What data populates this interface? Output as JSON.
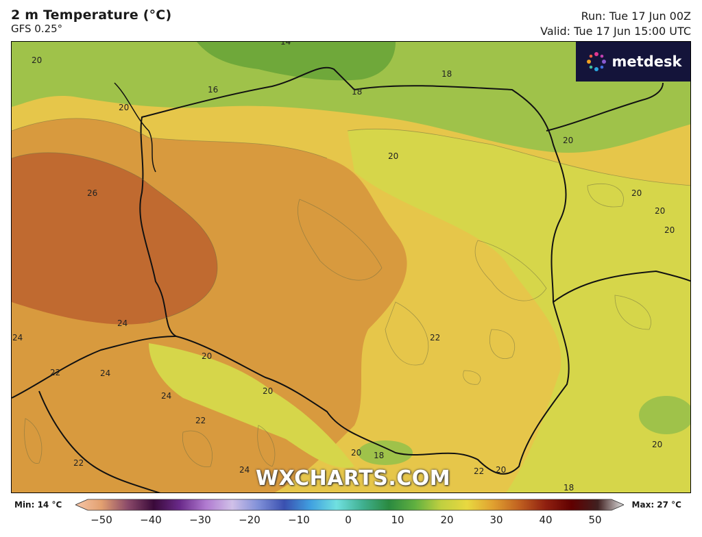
{
  "header": {
    "title": "2 m Temperature (°C)",
    "model": "GFS 0.25°",
    "run": "Run: Tue 17 Jun 00Z",
    "valid": "Valid: Tue 17 Jun 15:00 UTC"
  },
  "logo": {
    "text": "metdesk"
  },
  "watermark": "WXCHARTS.COM",
  "contour_labels": [
    "20",
    "16",
    "14",
    "18",
    "18",
    "20",
    "20",
    "20",
    "20",
    "20",
    "26",
    "24",
    "24",
    "22",
    "24",
    "24",
    "22",
    "20",
    "20",
    "22",
    "22",
    "24",
    "20",
    "18",
    "22",
    "20",
    "18",
    "20"
  ],
  "legend": {
    "min": "Min: 14 °C",
    "max": "Max: 27 °C",
    "ticks": [
      "−50",
      "−40",
      "−30",
      "−20",
      "−10",
      "0",
      "10",
      "20",
      "30",
      "40",
      "50"
    ],
    "stops": [
      "#f7c6a8",
      "#e2a070",
      "#8b4a6a",
      "#3a0a3a",
      "#6a2a8a",
      "#b07ad0",
      "#d0c0e8",
      "#8090d8",
      "#3a50b0",
      "#40a0e0",
      "#70e0e0",
      "#40b090",
      "#2a8a40",
      "#60b040",
      "#c0d040",
      "#e8d840",
      "#e0a030",
      "#c06020",
      "#902010",
      "#600000",
      "#402020",
      "#e0e0e0"
    ],
    "field_colors": {
      "t16": "#6fa83a",
      "t18": "#9fc24a",
      "t20": "#d6d64a",
      "t22": "#e6c64a",
      "t24": "#d89a3e",
      "t26": "#c06a30"
    }
  }
}
